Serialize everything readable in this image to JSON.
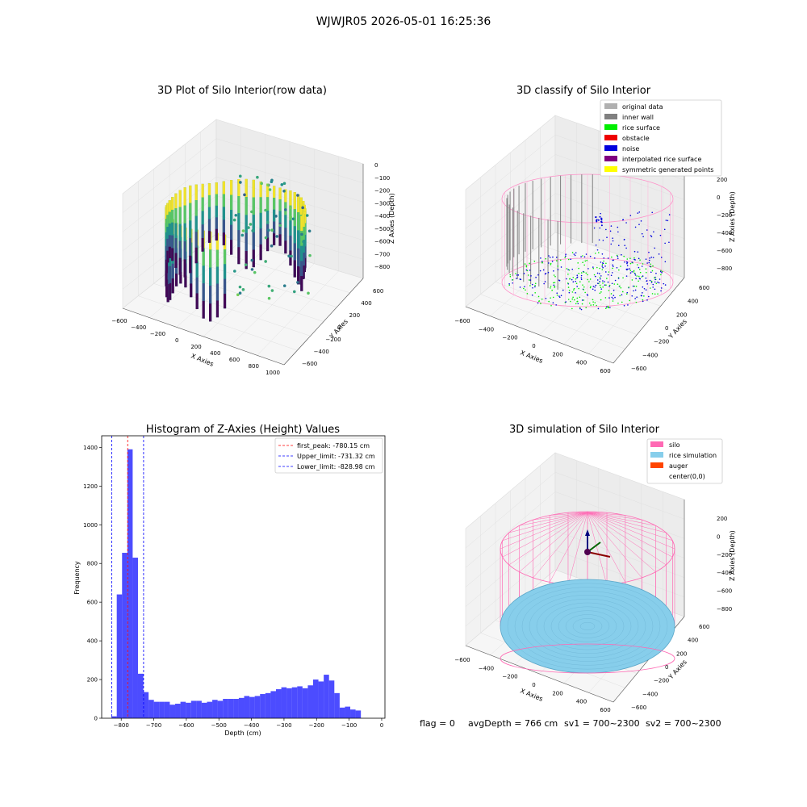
{
  "suptitle": "WJWJR05 2026-05-01 16:25:36",
  "status": {
    "flag": "flag = 0",
    "avg": "avgDepth = 766 cm",
    "sv1": "sv1 = 700~2300",
    "sv2": "sv2 = 700~2300"
  },
  "panels": {
    "p1": {
      "title": "3D Plot of Silo Interior(row data)",
      "xlabel": "X Axies",
      "ylabel": "Y Axies",
      "zlabel": "Z Axies (Depth)",
      "xticks": [
        "−600",
        "−400",
        "−200",
        "0",
        "200",
        "400",
        "600",
        "800",
        "1000"
      ],
      "yticks": [
        "−600",
        "−400",
        "−200",
        "0",
        "200",
        "400",
        "600"
      ],
      "zticks": [
        "0",
        "−100",
        "−200",
        "−300",
        "−400",
        "−500",
        "−600",
        "−700",
        "−800"
      ]
    },
    "p2": {
      "title": "3D classify of Silo Interior",
      "xlabel": "X Axies",
      "ylabel": "Y Axies",
      "zlabel": "Z Axies (Depth)",
      "xticks": [
        "−600",
        "−400",
        "−200",
        "0",
        "200",
        "400",
        "600"
      ],
      "yticks": [
        "−600",
        "−400",
        "−200",
        "0",
        "200",
        "400",
        "600"
      ],
      "zticks": [
        "200",
        "0",
        "−200",
        "−400",
        "−600",
        "−800"
      ],
      "legend": [
        {
          "label": "original data",
          "color": "#b0b0b0"
        },
        {
          "label": "inner wall",
          "color": "#808080"
        },
        {
          "label": "rice surface",
          "color": "#00ee00"
        },
        {
          "label": "obstacle",
          "color": "#ee0000"
        },
        {
          "label": "noise",
          "color": "#0000dd"
        },
        {
          "label": "interpolated rice surface",
          "color": "#800080"
        },
        {
          "label": "symmetric generated points",
          "color": "#ffff00"
        }
      ]
    },
    "p4": {
      "title": "3D simulation of Silo Interior",
      "xlabel": "X Axies",
      "ylabel": "Y Axies",
      "zlabel": "Z Axies (Depth)",
      "xticks": [
        "−600",
        "−400",
        "−200",
        "0",
        "200",
        "400",
        "600"
      ],
      "yticks": [
        "−600",
        "−400",
        "−200",
        "0",
        "200",
        "400",
        "600"
      ],
      "zticks": [
        "200",
        "0",
        "−200",
        "−400",
        "−600",
        "−800"
      ],
      "legend": [
        {
          "label": "silo",
          "color": "#ff69b4"
        },
        {
          "label": "rice simulation",
          "color": "#87ceeb"
        },
        {
          "label": "auger",
          "color": "#ff4500"
        },
        {
          "label": "center(0,0)",
          "color": ""
        }
      ]
    }
  },
  "chart_data": {
    "type": "bar",
    "title": "Histogram of Z-Axies (Height) Values",
    "xlabel": "Depth (cm)",
    "ylabel": "Frequency",
    "xlim": [
      -860,
      10
    ],
    "ylim": [
      0,
      1460
    ],
    "xticks": [
      -800,
      -700,
      -600,
      -500,
      -400,
      -300,
      -200,
      -100,
      0
    ],
    "yticks": [
      0,
      200,
      400,
      600,
      800,
      1000,
      1200,
      1400
    ],
    "bar_color": "#0000ff",
    "bin_start": -830,
    "bin_width": 16.3,
    "counts": [
      10,
      640,
      855,
      1390,
      830,
      230,
      135,
      95,
      85,
      85,
      85,
      70,
      75,
      85,
      80,
      90,
      90,
      80,
      85,
      95,
      90,
      100,
      100,
      100,
      105,
      115,
      110,
      115,
      125,
      130,
      140,
      150,
      160,
      155,
      160,
      165,
      155,
      170,
      200,
      190,
      225,
      195,
      130,
      55,
      60,
      45,
      40
    ],
    "lines": [
      {
        "label": "first_peak: -780.15 cm",
        "x": -780.15,
        "color": "#ff0000"
      },
      {
        "label": "Upper_limit: -731.32 cm",
        "x": -731.32,
        "color": "#0000ff"
      },
      {
        "label": "Lower_limit: -828.98 cm",
        "x": -828.98,
        "color": "#0000ff"
      }
    ],
    "legend_position": "top-right",
    "grid": false
  }
}
